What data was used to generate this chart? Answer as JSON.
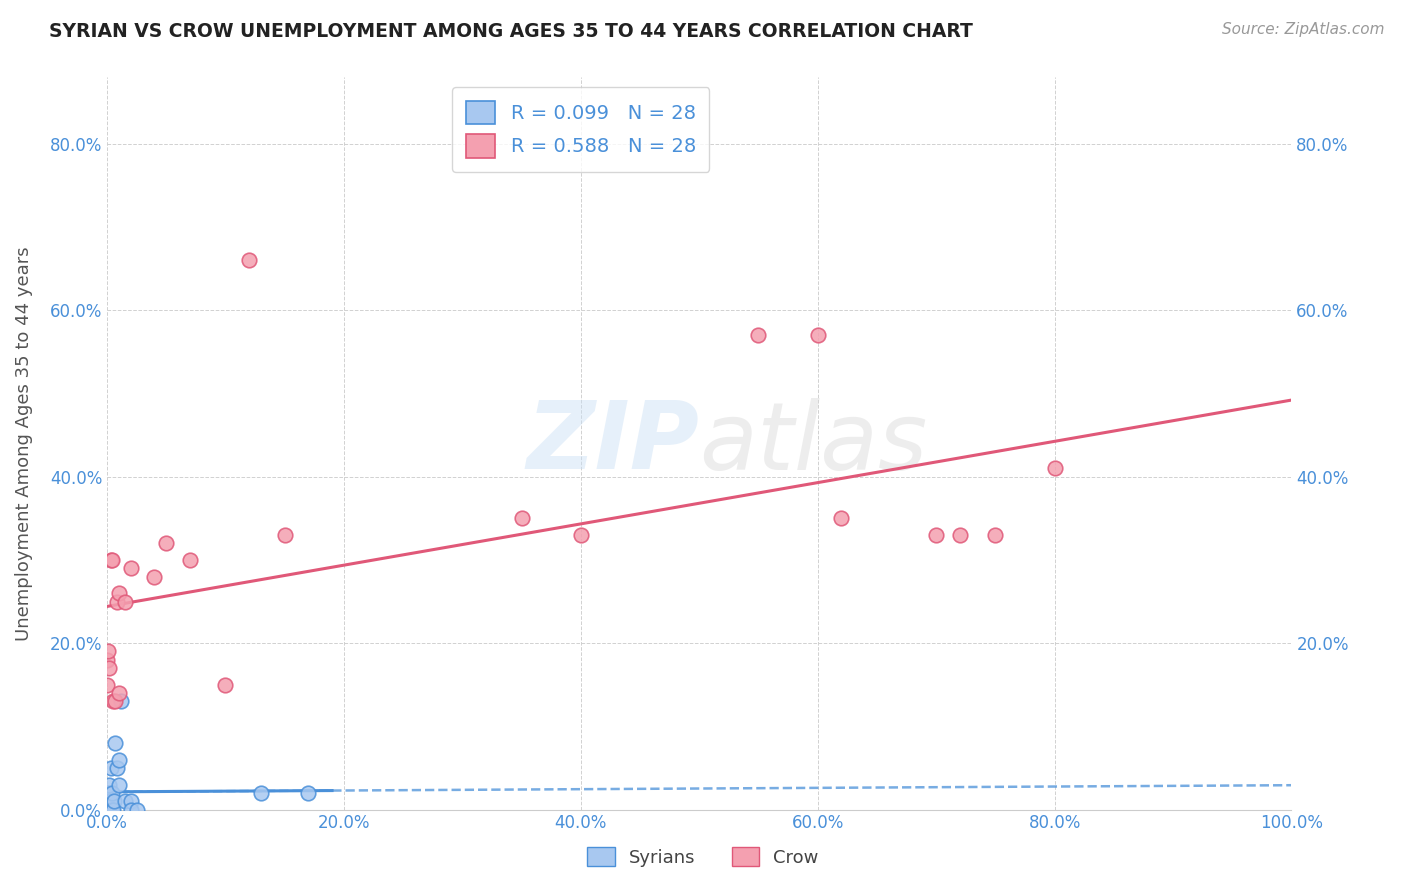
{
  "title": "SYRIAN VS CROW UNEMPLOYMENT AMONG AGES 35 TO 44 YEARS CORRELATION CHART",
  "source": "Source: ZipAtlas.com",
  "ylabel": "Unemployment Among Ages 35 to 44 years",
  "xlim": [
    0.0,
    1.0
  ],
  "ylim": [
    0.0,
    0.88
  ],
  "xticks": [
    0.0,
    0.2,
    0.4,
    0.6,
    0.8,
    1.0
  ],
  "xtick_labels": [
    "0.0%",
    "20.0%",
    "40.0%",
    "60.0%",
    "80.0%",
    "100.0%"
  ],
  "yticks": [
    0.0,
    0.2,
    0.4,
    0.6,
    0.8
  ],
  "ytick_labels": [
    "0.0%",
    "20.0%",
    "40.0%",
    "60.0%",
    "80.0%"
  ],
  "right_ytick_labels": [
    "20.0%",
    "40.0%",
    "60.0%",
    "80.0%"
  ],
  "right_yticks": [
    0.2,
    0.4,
    0.6,
    0.8
  ],
  "legend_label1": "R = 0.099   N = 28",
  "legend_label2": "R = 0.588   N = 28",
  "syrian_color": "#a8c8f0",
  "crow_color": "#f4a0b0",
  "syrian_line_color": "#4a90d9",
  "crow_line_color": "#e05878",
  "watermark_zip": "ZIP",
  "watermark_atlas": "atlas",
  "syrians_x": [
    0.0,
    0.0,
    0.0,
    0.0,
    0.0,
    0.001,
    0.001,
    0.001,
    0.002,
    0.002,
    0.002,
    0.003,
    0.003,
    0.004,
    0.004,
    0.005,
    0.006,
    0.007,
    0.008,
    0.01,
    0.01,
    0.012,
    0.015,
    0.02,
    0.02,
    0.025,
    0.13,
    0.17
  ],
  "syrians_y": [
    0.0,
    0.0,
    0.0,
    0.01,
    0.02,
    0.0,
    0.01,
    0.02,
    0.0,
    0.01,
    0.03,
    0.01,
    0.05,
    0.0,
    0.02,
    0.0,
    0.01,
    0.08,
    0.05,
    0.03,
    0.06,
    0.13,
    0.01,
    0.01,
    0.0,
    0.0,
    0.02,
    0.02
  ],
  "crow_x": [
    0.0,
    0.0,
    0.001,
    0.002,
    0.003,
    0.004,
    0.005,
    0.007,
    0.008,
    0.01,
    0.01,
    0.015,
    0.02,
    0.04,
    0.05,
    0.07,
    0.1,
    0.12,
    0.15,
    0.35,
    0.4,
    0.55,
    0.6,
    0.62,
    0.7,
    0.72,
    0.75,
    0.8
  ],
  "crow_y": [
    0.15,
    0.18,
    0.19,
    0.17,
    0.3,
    0.3,
    0.13,
    0.13,
    0.25,
    0.26,
    0.14,
    0.25,
    0.29,
    0.28,
    0.32,
    0.3,
    0.15,
    0.66,
    0.33,
    0.35,
    0.33,
    0.57,
    0.57,
    0.35,
    0.33,
    0.33,
    0.33,
    0.41
  ],
  "background_color": "#ffffff",
  "grid_color": "#cccccc",
  "tick_color": "#4a90d9",
  "title_color": "#222222",
  "source_color": "#999999",
  "ylabel_color": "#555555"
}
